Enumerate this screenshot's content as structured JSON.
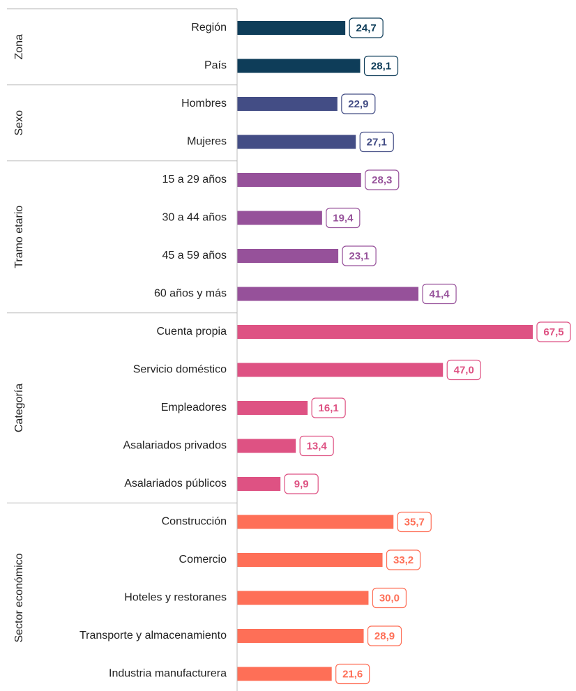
{
  "chart_data": {
    "type": "bar",
    "orientation": "horizontal",
    "groups": [
      {
        "name": "Zona",
        "color": "#0e3d59",
        "categories": [
          "Región",
          "País"
        ],
        "values": [
          24.7,
          28.1
        ],
        "value_labels": [
          "24,7",
          "28,1"
        ]
      },
      {
        "name": "Sexo",
        "color": "#434d85",
        "categories": [
          "Hombres",
          "Mujeres"
        ],
        "values": [
          22.9,
          27.1
        ],
        "value_labels": [
          "22,9",
          "27,1"
        ]
      },
      {
        "name": "Tramo etario",
        "color": "#96519a",
        "categories": [
          "15 a 29 años",
          "30 a 44 años",
          "45 a 59 años",
          "60 años y más"
        ],
        "values": [
          28.3,
          19.4,
          23.1,
          41.4
        ],
        "value_labels": [
          "28,3",
          "19,4",
          "23,1",
          "41,4"
        ]
      },
      {
        "name": "Categoría",
        "color": "#de5283",
        "categories": [
          "Cuenta propia",
          "Servicio doméstico",
          "Empleadores",
          "Asalariados privados",
          "Asalariados públicos"
        ],
        "values": [
          67.5,
          47.0,
          16.1,
          13.4,
          9.9
        ],
        "value_labels": [
          "67,5",
          "47,0",
          "16,1",
          "13,4",
          "9,9"
        ]
      },
      {
        "name": "Sector económico",
        "color": "#fe6f57",
        "categories": [
          "Construcción",
          "Comercio",
          "Hoteles y restoranes",
          "Transporte y almacenamiento",
          "Industria manufacturera"
        ],
        "values": [
          35.7,
          33.2,
          30.0,
          28.9,
          21.6
        ],
        "value_labels": [
          "35,7",
          "33,2",
          "30,0",
          "28,9",
          "21,6"
        ]
      }
    ]
  }
}
